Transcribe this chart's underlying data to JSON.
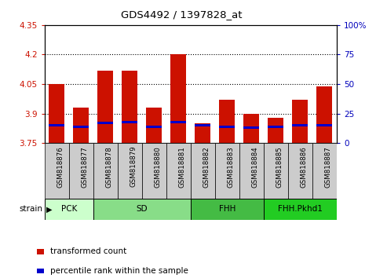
{
  "title": "GDS4492 / 1397828_at",
  "samples": [
    "GSM818876",
    "GSM818877",
    "GSM818878",
    "GSM818879",
    "GSM818880",
    "GSM818881",
    "GSM818882",
    "GSM818883",
    "GSM818884",
    "GSM818885",
    "GSM818886",
    "GSM818887"
  ],
  "transformed_count": [
    4.05,
    3.93,
    4.12,
    4.12,
    3.93,
    4.2,
    3.85,
    3.97,
    3.9,
    3.88,
    3.97,
    4.04
  ],
  "percentile_rank": [
    15,
    14,
    17,
    18,
    14,
    18,
    15,
    14,
    13,
    14,
    15,
    15
  ],
  "ymin": 3.75,
  "ymax": 4.35,
  "yticks": [
    3.75,
    3.9,
    4.05,
    4.2,
    4.35
  ],
  "right_yticks": [
    0,
    25,
    50,
    75,
    100
  ],
  "group_defs": [
    {
      "label": "PCK",
      "indices": [
        0,
        1
      ],
      "color": "#ccffcc"
    },
    {
      "label": "SD",
      "indices": [
        2,
        3,
        4,
        5
      ],
      "color": "#88dd88"
    },
    {
      "label": "FHH",
      "indices": [
        6,
        7,
        8
      ],
      "color": "#44bb44"
    },
    {
      "label": "FHH.Pkhd1",
      "indices": [
        9,
        10,
        11
      ],
      "color": "#22cc22"
    }
  ],
  "bar_color": "#cc1100",
  "percentile_color": "#0000cc",
  "bar_width": 0.65,
  "legend_labels": [
    "transformed count",
    "percentile rank within the sample"
  ],
  "legend_colors": [
    "#cc1100",
    "#0000cc"
  ],
  "ylabel_left_color": "#cc1100",
  "ylabel_right_color": "#0000bb",
  "tick_bg_color": "#cccccc",
  "grid_color": "#000000"
}
